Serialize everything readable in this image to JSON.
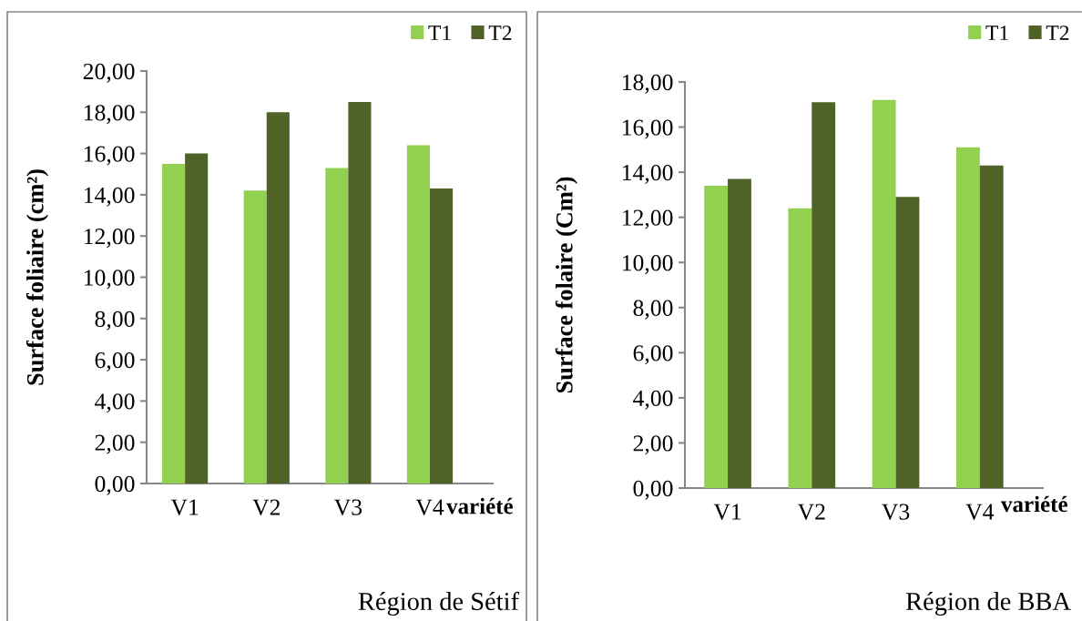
{
  "chart_data": [
    {
      "type": "bar",
      "categories": [
        "V1",
        "V2",
        "V3",
        "V4"
      ],
      "series": [
        {
          "name": "T1",
          "color": "#92d050",
          "values": [
            15.5,
            14.2,
            15.3,
            16.4
          ]
        },
        {
          "name": "T2",
          "color": "#4f6228",
          "values": [
            16.0,
            18.0,
            18.5,
            14.3
          ]
        }
      ],
      "xlabel": "variété",
      "ylabel": "Surface foliaire (cm²)",
      "ylim": [
        0,
        20
      ],
      "yticks": [
        {
          "value": 0,
          "label": "0,00"
        },
        {
          "value": 2,
          "label": "2,00"
        },
        {
          "value": 4,
          "label": "4,00"
        },
        {
          "value": 6,
          "label": "6,00"
        },
        {
          "value": 8,
          "label": "8,00"
        },
        {
          "value": 10,
          "label": "10,00"
        },
        {
          "value": 12,
          "label": "12,00"
        },
        {
          "value": 14,
          "label": "14,00"
        },
        {
          "value": 16,
          "label": "16,00"
        },
        {
          "value": 18,
          "label": "18,00"
        },
        {
          "value": 20,
          "label": "20,00"
        }
      ],
      "legend": "top right",
      "annotations": [
        "Région de Sétif"
      ]
    },
    {
      "type": "bar",
      "categories": [
        "V1",
        "V2",
        "V3",
        "V4"
      ],
      "series": [
        {
          "name": "T1",
          "color": "#92d050",
          "values": [
            13.4,
            12.4,
            17.2,
            15.1
          ]
        },
        {
          "name": "T2",
          "color": "#4f6228",
          "values": [
            13.7,
            17.1,
            12.9,
            14.3
          ]
        }
      ],
      "xlabel": "variété",
      "ylabel": "Surface folaire (Cm²)",
      "ylim": [
        0,
        18
      ],
      "yticks": [
        {
          "value": 0,
          "label": "0,00"
        },
        {
          "value": 2,
          "label": "2,00"
        },
        {
          "value": 4,
          "label": "4,00"
        },
        {
          "value": 6,
          "label": "6,00"
        },
        {
          "value": 8,
          "label": "8,00"
        },
        {
          "value": 10,
          "label": "10,00"
        },
        {
          "value": 12,
          "label": "12,00"
        },
        {
          "value": 14,
          "label": "14,00"
        },
        {
          "value": 16,
          "label": "16,00"
        },
        {
          "value": 18,
          "label": "18,00"
        }
      ],
      "legend": "top right",
      "annotations": [
        "Région de BBA"
      ]
    }
  ]
}
